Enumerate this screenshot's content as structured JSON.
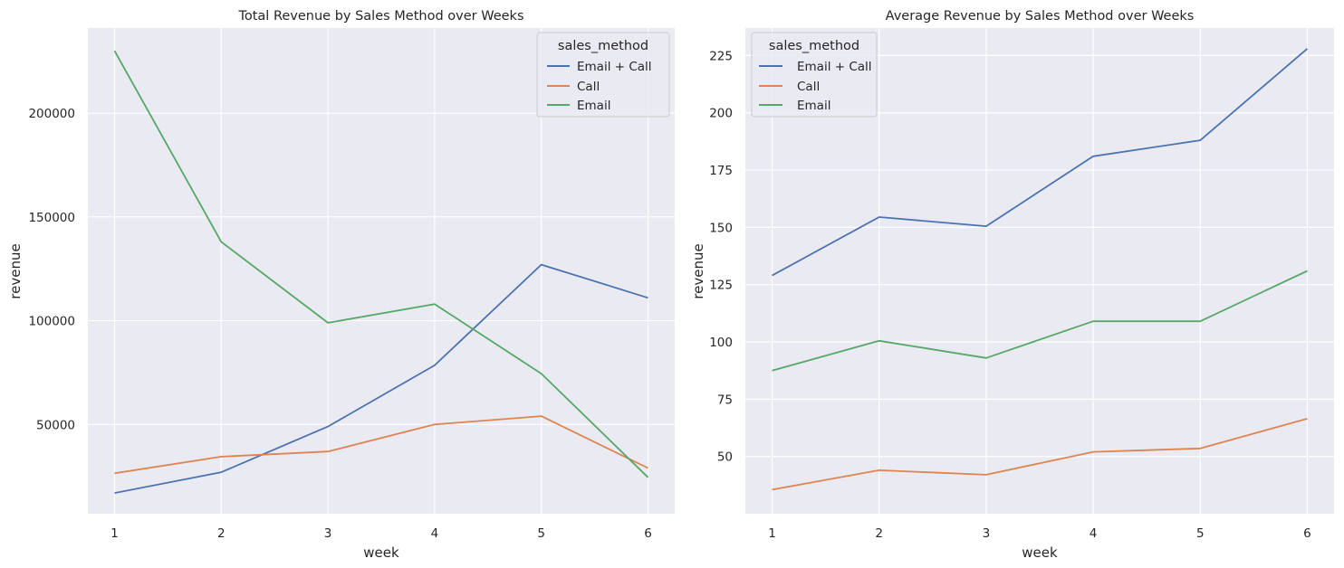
{
  "legend": {
    "title": "sales_method",
    "entries": [
      "Email + Call",
      "Call",
      "Email"
    ]
  },
  "colors": {
    "Email + Call": "#4c72b0",
    "Call": "#dd8452",
    "Email": "#55a868",
    "background": "#eaeaf2",
    "grid": "#ffffff"
  },
  "chart_data": [
    {
      "type": "line",
      "title": "Total Revenue by Sales Method over Weeks",
      "xlabel": "week",
      "ylabel": "revenue",
      "x": [
        1,
        2,
        3,
        4,
        5,
        6
      ],
      "xticks": [
        "1",
        "2",
        "3",
        "4",
        "5",
        "6"
      ],
      "yticks": [
        "50000",
        "100000",
        "150000",
        "200000"
      ],
      "xlim": [
        0.75,
        6.25
      ],
      "ylim": [
        7000,
        241000
      ],
      "legend_position": "top-right",
      "grid": true,
      "series": [
        {
          "name": "Email + Call",
          "values": [
            17000,
            27000,
            49000,
            78500,
            127000,
            111000
          ]
        },
        {
          "name": "Call",
          "values": [
            26500,
            34500,
            37000,
            50000,
            54000,
            29000
          ]
        },
        {
          "name": "Email",
          "values": [
            230000,
            138000,
            99000,
            108000,
            74500,
            24500
          ]
        }
      ]
    },
    {
      "type": "line",
      "title": "Average Revenue by Sales Method over Weeks",
      "xlabel": "week",
      "ylabel": "revenue",
      "x": [
        1,
        2,
        3,
        4,
        5,
        6
      ],
      "xticks": [
        "1",
        "2",
        "3",
        "4",
        "5",
        "6"
      ],
      "yticks": [
        "50",
        "75",
        "100",
        "125",
        "150",
        "175",
        "200",
        "225"
      ],
      "xlim": [
        0.75,
        6.25
      ],
      "ylim": [
        25,
        237
      ],
      "legend_position": "top-left",
      "grid": true,
      "series": [
        {
          "name": "Email + Call",
          "values": [
            129,
            154.5,
            150.5,
            181,
            188,
            228
          ]
        },
        {
          "name": "Call",
          "values": [
            35.5,
            44,
            42,
            52,
            53.5,
            66.5
          ]
        },
        {
          "name": "Email",
          "values": [
            87.5,
            100.5,
            93,
            109,
            109,
            131
          ]
        }
      ]
    }
  ]
}
